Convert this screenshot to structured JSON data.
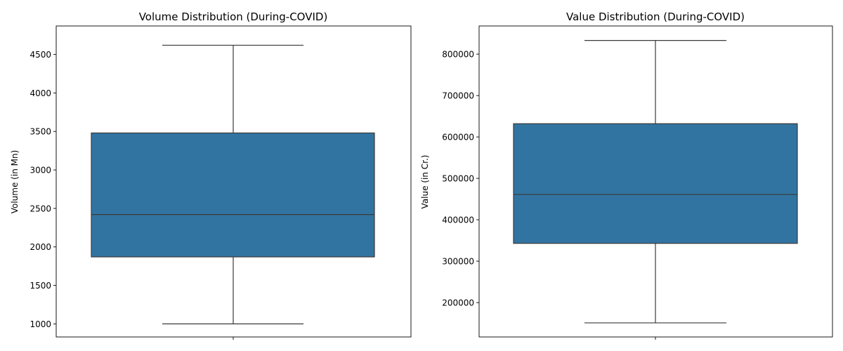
{
  "colors": {
    "box_fill": "#3274a1",
    "line": "#3a3a3a",
    "axis": "#000000",
    "background": "#ffffff"
  },
  "chart_data": [
    {
      "type": "box",
      "title": "Volume Distribution (During-COVID)",
      "xlabel": "",
      "ylabel": "Volume (in Mn)",
      "ylim": [
        830,
        4870
      ],
      "yticks": [
        1000,
        1500,
        2000,
        2500,
        3000,
        3500,
        4000,
        4500
      ],
      "ytick_labels": [
        "1000",
        "1500",
        "2000",
        "2500",
        "3000",
        "3500",
        "4000",
        "4500"
      ],
      "box": {
        "whisker_low": 1000,
        "q1": 1870,
        "median": 2420,
        "q3": 3480,
        "whisker_high": 4620
      },
      "grid": false
    },
    {
      "type": "box",
      "title": "Value Distribution (During-COVID)",
      "xlabel": "",
      "ylabel": "Value (in Cr.)",
      "ylim": [
        117000,
        868000
      ],
      "yticks": [
        200000,
        300000,
        400000,
        500000,
        600000,
        700000,
        800000
      ],
      "ytick_labels": [
        "200000",
        "300000",
        "400000",
        "500000",
        "600000",
        "700000",
        "800000"
      ],
      "box": {
        "whisker_low": 151000,
        "q1": 343000,
        "median": 461000,
        "q3": 632000,
        "whisker_high": 833000
      },
      "grid": false
    }
  ]
}
